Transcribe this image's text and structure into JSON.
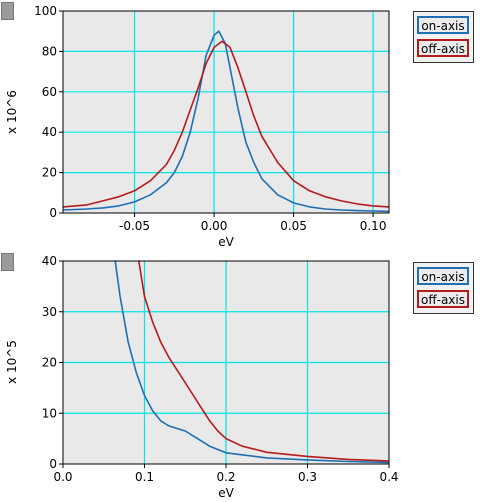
{
  "colors": {
    "on": "#1f6fb4",
    "off": "#b51b1b",
    "grid": "#00e5e5",
    "plot_bg": "#e9e9e9"
  },
  "chart_data": [
    {
      "type": "line",
      "xlabel": "eV",
      "ylabel": "x 10^6",
      "xlim": [
        -0.095,
        0.11
      ],
      "ylim": [
        0,
        100
      ],
      "xticks": [
        -0.05,
        0.0,
        0.05,
        0.1
      ],
      "xtick_labels": [
        "-0.05",
        "0.00",
        "0.05",
        "0.10"
      ],
      "yticks": [
        0,
        20,
        40,
        60,
        80,
        100
      ],
      "ytick_labels": [
        "0",
        "20",
        "40",
        "60",
        "80",
        "100"
      ],
      "grid": true,
      "legend_position": "right-top",
      "series": [
        {
          "name": "on-axis",
          "x": [
            -0.095,
            -0.08,
            -0.07,
            -0.06,
            -0.05,
            -0.04,
            -0.03,
            -0.025,
            -0.02,
            -0.015,
            -0.01,
            -0.005,
            0.0,
            0.003,
            0.007,
            0.01,
            0.015,
            0.02,
            0.025,
            0.03,
            0.04,
            0.05,
            0.06,
            0.07,
            0.08,
            0.09,
            0.1,
            0.11
          ],
          "y": [
            1.5,
            2,
            2.5,
            3.5,
            5.5,
            9,
            15,
            20,
            28,
            40,
            57,
            78,
            88,
            90,
            84,
            72,
            52,
            35,
            25,
            17,
            9,
            5,
            3,
            2,
            1.5,
            1.2,
            1,
            0.8
          ]
        },
        {
          "name": "off-axis",
          "x": [
            -0.095,
            -0.08,
            -0.07,
            -0.06,
            -0.05,
            -0.04,
            -0.03,
            -0.025,
            -0.02,
            -0.015,
            -0.01,
            -0.005,
            0.0,
            0.005,
            0.01,
            0.015,
            0.02,
            0.025,
            0.03,
            0.04,
            0.05,
            0.06,
            0.07,
            0.08,
            0.09,
            0.1,
            0.11
          ],
          "y": [
            3,
            4,
            6,
            8,
            11,
            16,
            24,
            31,
            40,
            51,
            62,
            74,
            82,
            85,
            82,
            72,
            60,
            48,
            38,
            25,
            16,
            11,
            8,
            6,
            4.5,
            3.5,
            3
          ]
        }
      ]
    },
    {
      "type": "line",
      "xlabel": "eV",
      "ylabel": "x 10^5",
      "xlim": [
        0.0,
        0.4
      ],
      "ylim": [
        0,
        40
      ],
      "xticks": [
        0.0,
        0.1,
        0.2,
        0.3,
        0.4
      ],
      "xtick_labels": [
        "0.0",
        "0.1",
        "0.2",
        "0.3",
        "0.4"
      ],
      "yticks": [
        0,
        10,
        20,
        30,
        40
      ],
      "ytick_labels": [
        "0",
        "10",
        "20",
        "30",
        "40"
      ],
      "grid": true,
      "legend_position": "right-top",
      "series": [
        {
          "name": "on-axis",
          "x": [
            0.064,
            0.07,
            0.08,
            0.09,
            0.1,
            0.11,
            0.12,
            0.13,
            0.14,
            0.15,
            0.16,
            0.18,
            0.2,
            0.25,
            0.3,
            0.35,
            0.4
          ],
          "y": [
            40,
            33,
            24,
            18,
            13.5,
            10.5,
            8.5,
            7.5,
            7,
            6.5,
            5.5,
            3.5,
            2.2,
            1.2,
            0.8,
            0.5,
            0.3
          ]
        },
        {
          "name": "off-axis",
          "x": [
            0.093,
            0.1,
            0.11,
            0.12,
            0.13,
            0.14,
            0.15,
            0.16,
            0.17,
            0.18,
            0.19,
            0.2,
            0.22,
            0.25,
            0.3,
            0.35,
            0.4
          ],
          "y": [
            40,
            33,
            28,
            24,
            21,
            18.5,
            16,
            13.5,
            11,
            8.5,
            6.5,
            5,
            3.5,
            2.3,
            1.5,
            0.9,
            0.6
          ]
        }
      ]
    }
  ]
}
